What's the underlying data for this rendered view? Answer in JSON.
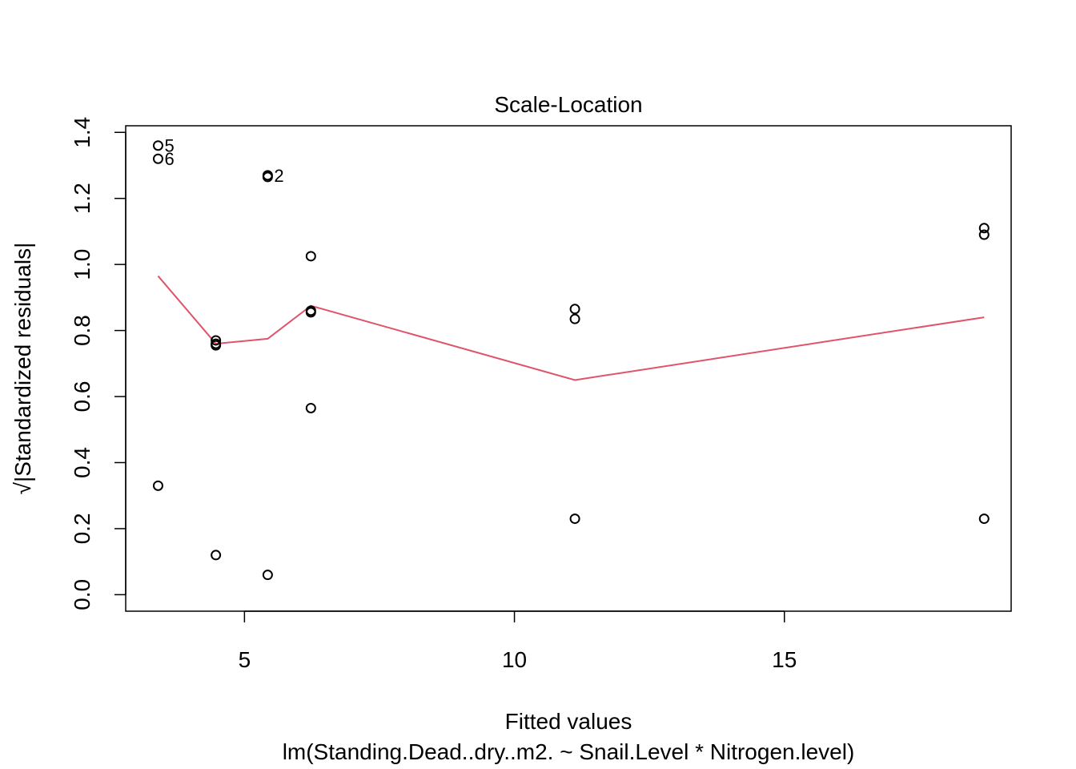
{
  "chart_data": {
    "type": "scatter",
    "title": "Scale-Location",
    "xlabel": "Fitted values",
    "ylabel": "√|Standardized residuals|",
    "subtitle": "lm(Standing.Dead..dry..m2. ~ Snail.Level * Nitrogen.level)",
    "xlim": [
      2.8,
      19.2
    ],
    "ylim": [
      -0.05,
      1.42
    ],
    "x_ticks": [
      5,
      10,
      15
    ],
    "y_ticks": [
      0.0,
      0.2,
      0.4,
      0.6,
      0.8,
      1.0,
      1.2,
      1.4
    ],
    "x_tick_labels": [
      "5",
      "10",
      "15"
    ],
    "y_tick_labels": [
      "0.0",
      "0.2",
      "0.4",
      "0.6",
      "0.8",
      "1.0",
      "1.2",
      "1.4"
    ],
    "grid": false,
    "legend": "none",
    "points": [
      {
        "x": 3.4,
        "y": 1.36,
        "label": "5"
      },
      {
        "x": 3.4,
        "y": 1.32,
        "label": "6"
      },
      {
        "x": 3.4,
        "y": 0.33,
        "label": ""
      },
      {
        "x": 4.47,
        "y": 0.77,
        "label": ""
      },
      {
        "x": 4.47,
        "y": 0.76,
        "label": ""
      },
      {
        "x": 4.47,
        "y": 0.755,
        "label": ""
      },
      {
        "x": 4.47,
        "y": 0.12,
        "label": ""
      },
      {
        "x": 5.43,
        "y": 1.27,
        "label": "2"
      },
      {
        "x": 5.43,
        "y": 1.265,
        "label": ""
      },
      {
        "x": 5.43,
        "y": 0.06,
        "label": ""
      },
      {
        "x": 6.23,
        "y": 1.025,
        "label": ""
      },
      {
        "x": 6.23,
        "y": 0.86,
        "label": ""
      },
      {
        "x": 6.23,
        "y": 0.855,
        "label": ""
      },
      {
        "x": 6.23,
        "y": 0.565,
        "label": ""
      },
      {
        "x": 11.12,
        "y": 0.865,
        "label": ""
      },
      {
        "x": 11.12,
        "y": 0.835,
        "label": ""
      },
      {
        "x": 11.12,
        "y": 0.23,
        "label": ""
      },
      {
        "x": 18.7,
        "y": 1.11,
        "label": ""
      },
      {
        "x": 18.7,
        "y": 1.09,
        "label": ""
      },
      {
        "x": 18.7,
        "y": 0.23,
        "label": ""
      }
    ],
    "smoother": {
      "x": [
        3.4,
        4.47,
        5.43,
        6.23,
        11.12,
        18.7
      ],
      "y": [
        0.965,
        0.76,
        0.775,
        0.875,
        0.65,
        0.84
      ]
    },
    "colors": {
      "points": "#000000",
      "smoother": "#DF536B",
      "axes": "#000000"
    }
  }
}
